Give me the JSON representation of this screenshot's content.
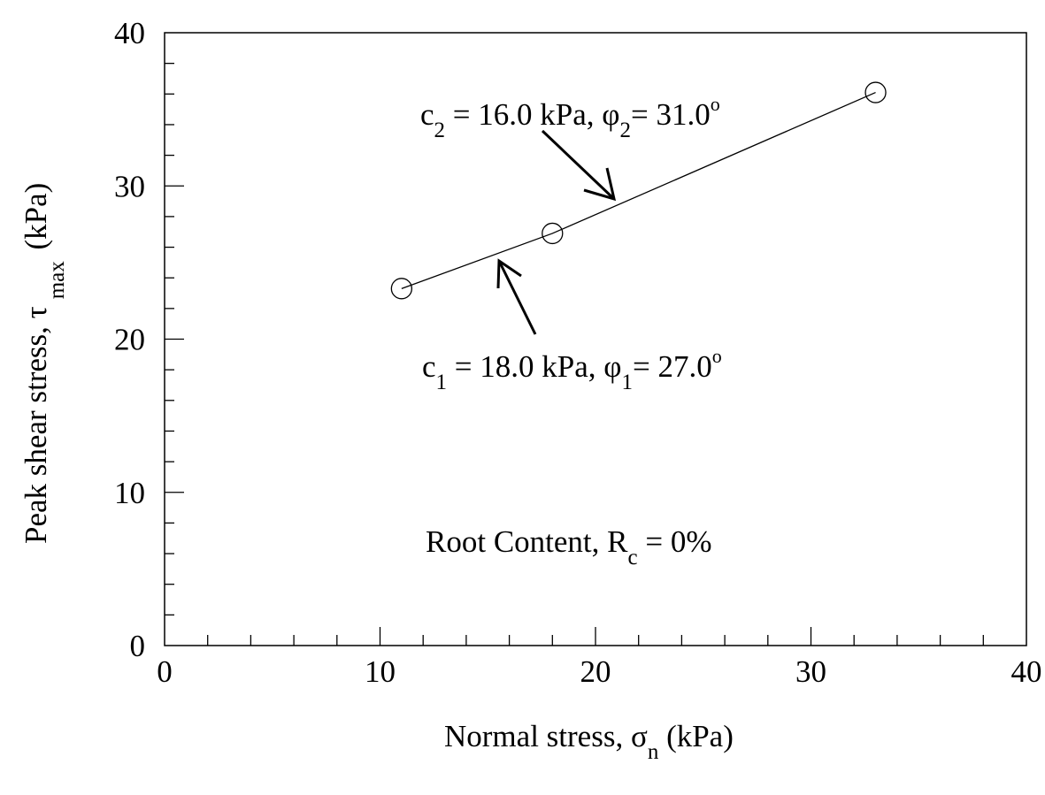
{
  "chart_data": {
    "type": "line",
    "title": "",
    "xlabel": "Normal stress, σn (kPa)",
    "xlabel_parts": {
      "main": "Normal stress, σ",
      "sub": "n",
      "unit": " (kPa)"
    },
    "ylabel": "Peak shear stress, τmax (kPa)",
    "ylabel_parts": {
      "main": "Peak shear stress, τ",
      "sub": "max",
      "unit": " (kPa)"
    },
    "xlim": [
      0,
      40
    ],
    "ylim": [
      0,
      40
    ],
    "x_ticks": [
      0,
      10,
      20,
      30,
      40
    ],
    "y_ticks": [
      0,
      10,
      20,
      30,
      40
    ],
    "x_minor_step": 2,
    "y_minor_step": 2,
    "grid": false,
    "legend": null,
    "series": [
      {
        "name": "Root Content Rc = 0%",
        "marker": "open-circle",
        "line": "solid",
        "x": [
          11,
          18,
          33
        ],
        "y": [
          23.3,
          26.9,
          36.1
        ]
      }
    ],
    "annotations": [
      {
        "id": "c2",
        "text_main": "c",
        "sub1": "2",
        "text_mid": " = 16.0 kPa, φ",
        "sub2": "2",
        "text_end": "= 31.0",
        "sup": "o",
        "label": "c2 = 16.0 kPa, φ2 = 31.0°",
        "arrow_to": [
          21,
          29
        ]
      },
      {
        "id": "c1",
        "text_main": "c",
        "sub1": "1",
        "text_mid": " = 18.0 kPa, φ",
        "sub2": "1",
        "text_end": "= 27.0",
        "sup": "o",
        "label": "c1 = 18.0 kPa, φ1 = 27.0°",
        "arrow_to": [
          15.5,
          25.3
        ]
      },
      {
        "id": "rc",
        "text_main": "Root Content, R",
        "sub1": "c",
        "text_end": " = 0%",
        "label": "Root Content, Rc = 0%"
      }
    ]
  }
}
